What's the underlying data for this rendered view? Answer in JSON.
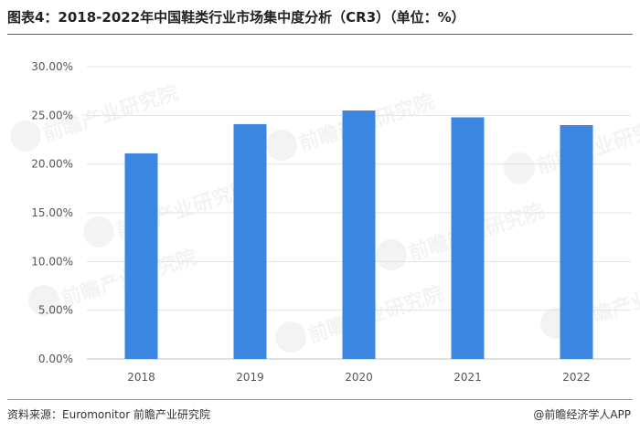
{
  "header": {
    "title": "图表4：2018-2022年中国鞋类行业市场集中度分析（CR3）（单位：%）"
  },
  "footer": {
    "source": "资料来源：Euromonitor 前瞻产业研究院",
    "brand": "@前瞻经济学人APP"
  },
  "watermark": {
    "text": "前瞻产业研究院"
  },
  "chart_data": {
    "type": "bar",
    "title": "图表4：2018-2022年中国鞋类行业市场集中度分析（CR3）（单位：%）",
    "categories": [
      "2018",
      "2019",
      "2020",
      "2021",
      "2022"
    ],
    "values": [
      21.1,
      24.1,
      25.5,
      24.8,
      24.0
    ],
    "ylim": [
      0,
      30
    ],
    "yticks": [
      "0.00%",
      "5.00%",
      "10.00%",
      "15.00%",
      "20.00%",
      "25.00%",
      "30.00%"
    ],
    "grid": true,
    "legend": "none",
    "bar_color": "#3a86e0"
  }
}
